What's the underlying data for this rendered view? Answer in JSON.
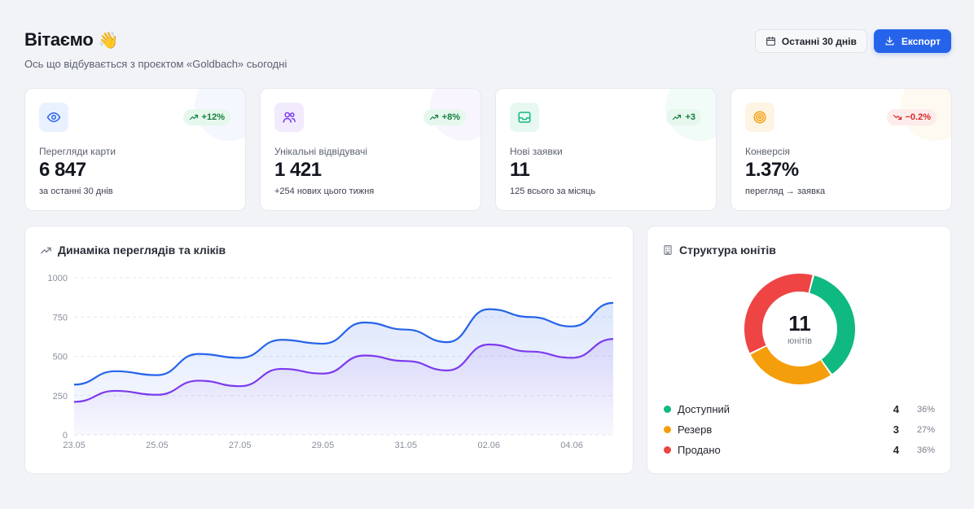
{
  "header": {
    "title": "Вітаємо",
    "title_emoji": "👋",
    "subtitle": "Ось що відбувається з проєктом «Goldbach» сьогодні",
    "range_label": "Останні 30 днів",
    "export_label": "Експорт"
  },
  "stats": [
    {
      "label": "Перегляди карти",
      "value": "6 847",
      "sub": "за останні 30 днів",
      "badge": "+12%",
      "trend": "up",
      "icon": "eye-icon",
      "color": "#2563eb"
    },
    {
      "label": "Унікальні відвідувачі",
      "value": "1 421",
      "sub": "+254 нових цього тижня",
      "badge": "+8%",
      "trend": "up",
      "icon": "users-icon",
      "color": "#7c3aed"
    },
    {
      "label": "Нові заявки",
      "value": "11",
      "sub": "125 всього за місяць",
      "badge": "+3",
      "trend": "up",
      "icon": "inbox-icon",
      "color": "#10b981"
    },
    {
      "label": "Конверсія",
      "value": "1.37%",
      "sub": "перегляд → заявка",
      "badge": "−0.2%",
      "trend": "down",
      "icon": "target-icon",
      "color": "#f59e0b"
    }
  ],
  "chart": {
    "title": "Динаміка переглядів та кліків"
  },
  "chart_data": {
    "type": "area",
    "x": [
      "23.05",
      "24.05",
      "25.05",
      "26.05",
      "27.05",
      "28.05",
      "29.05",
      "30.05",
      "31.05",
      "01.06",
      "02.06",
      "03.06",
      "04.06",
      "05.06"
    ],
    "x_tick_labels": [
      "23.05",
      "25.05",
      "27.05",
      "29.05",
      "31.05",
      "02.06",
      "04.06"
    ],
    "ylim": [
      0,
      1000
    ],
    "y_ticks": [
      0,
      250,
      500,
      750,
      1000
    ],
    "grid": true,
    "series": [
      {
        "values": [
          320,
          405,
          380,
          515,
          490,
          605,
          580,
          715,
          670,
          590,
          800,
          750,
          690,
          840
        ],
        "color": "#2563eb"
      },
      {
        "values": [
          210,
          280,
          255,
          345,
          310,
          420,
          390,
          505,
          470,
          410,
          575,
          530,
          490,
          610
        ],
        "color": "#7c3aed"
      }
    ]
  },
  "units": {
    "title": "Структура юнітів",
    "total": "11",
    "total_label": "юнітів",
    "items": [
      {
        "name": "Доступний",
        "count": "4",
        "pct": "36%",
        "value": 4,
        "color": "#10b981"
      },
      {
        "name": "Резерв",
        "count": "3",
        "pct": "27%",
        "value": 3,
        "color": "#f59e0b"
      },
      {
        "name": "Продано",
        "count": "4",
        "pct": "36%",
        "value": 4,
        "color": "#ef4444"
      }
    ]
  }
}
